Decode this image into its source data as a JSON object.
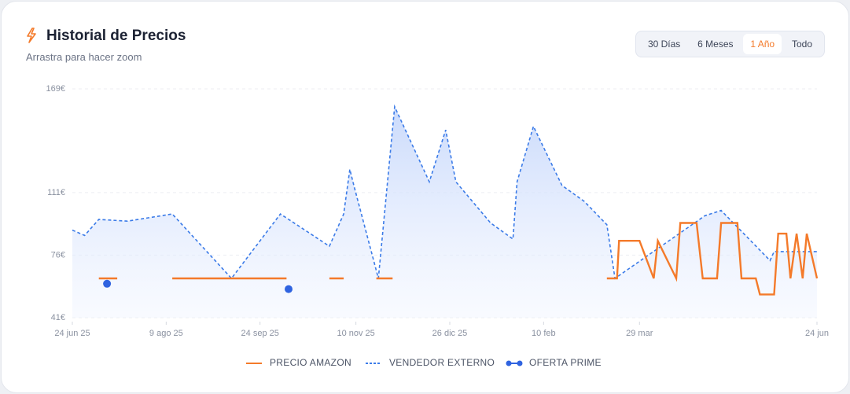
{
  "chart_data": {
    "type": "line",
    "title": "Historial de Precios",
    "subtitle": "Arrastra para hacer zoom",
    "range_options": [
      "30 Días",
      "6 Meses",
      "1 Año",
      "Todo"
    ],
    "selected_range": 2,
    "xlim": [
      0,
      365
    ],
    "xticks": [
      {
        "value": 0,
        "label": "24 jun 25"
      },
      {
        "value": 46,
        "label": "9 ago 25"
      },
      {
        "value": 92,
        "label": "24 sep 25"
      },
      {
        "value": 139,
        "label": "10 nov 25"
      },
      {
        "value": 185,
        "label": "26 dic 25"
      },
      {
        "value": 231,
        "label": "10 feb"
      },
      {
        "value": 278,
        "label": "29 mar"
      },
      {
        "value": 365,
        "label": "24 jun"
      }
    ],
    "ylim": [
      41,
      169
    ],
    "yticks": [
      {
        "value": 41,
        "label": "41€"
      },
      {
        "value": 76,
        "label": "76€"
      },
      {
        "value": 111,
        "label": "111€"
      },
      {
        "value": 169,
        "label": "169€"
      }
    ],
    "grid": true,
    "series": [
      {
        "name": "VENDEDOR EXTERNO",
        "color": "#3b7be8",
        "style": "dashed",
        "x": [
          0,
          6,
          13,
          27,
          49,
          78,
          102,
          114,
          126,
          133,
          136,
          138,
          150,
          158,
          175,
          183,
          188,
          205,
          216,
          218,
          226,
          240,
          251,
          262,
          266,
          310,
          318,
          342,
          344,
          365
        ],
        "values": [
          90,
          87,
          96,
          95,
          99,
          63,
          99,
          90,
          81,
          99,
          124,
          115,
          63,
          159,
          117,
          146,
          117,
          94,
          85,
          117,
          148,
          115,
          106,
          93,
          63,
          98,
          101,
          73,
          78,
          78
        ]
      },
      {
        "name": "PRECIO AMAZON",
        "color": "#f47a2a",
        "style": "solid",
        "x": [
          13,
          22,
          23,
          49,
          86,
          92,
          105,
          106,
          126,
          133,
          134,
          149,
          157,
          158,
          262,
          267,
          268,
          278,
          285,
          287,
          296,
          298,
          306,
          309,
          316,
          318,
          326,
          328,
          335,
          337,
          344,
          346,
          350,
          352,
          355,
          358,
          360,
          365
        ],
        "values": [
          63,
          63,
          null,
          63,
          63,
          63,
          63,
          null,
          63,
          63,
          null,
          63,
          63,
          null,
          63,
          63,
          84,
          84,
          63,
          84,
          63,
          94,
          94,
          63,
          63,
          94,
          94,
          63,
          63,
          54,
          54,
          88,
          88,
          63,
          88,
          63,
          88,
          63
        ]
      },
      {
        "name": "OFERTA PRIME",
        "color": "#2f63e0",
        "style": "markers",
        "x": [
          17,
          106
        ],
        "values": [
          60,
          57
        ]
      }
    ]
  }
}
